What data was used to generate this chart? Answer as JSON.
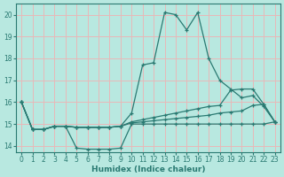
{
  "xlabel": "Humidex (Indice chaleur)",
  "xlim": [
    -0.5,
    23.5
  ],
  "ylim": [
    13.7,
    20.5
  ],
  "yticks": [
    14,
    15,
    16,
    17,
    18,
    19,
    20
  ],
  "xticks": [
    0,
    1,
    2,
    3,
    4,
    5,
    6,
    7,
    8,
    9,
    10,
    11,
    12,
    13,
    14,
    15,
    16,
    17,
    18,
    19,
    20,
    21,
    22,
    23
  ],
  "bg_color": "#b8e8e0",
  "grid_color": "#e8b8b8",
  "line_color": "#2a7a72",
  "series": [
    {
      "x": [
        0,
        1,
        2,
        3,
        4,
        5,
        6,
        7,
        8,
        9,
        10,
        11,
        12,
        13,
        14,
        15,
        16,
        17,
        18,
        19,
        20,
        21,
        22,
        23
      ],
      "y": [
        16.0,
        14.75,
        14.75,
        14.9,
        14.9,
        14.85,
        14.85,
        14.85,
        14.85,
        14.9,
        15.5,
        17.7,
        17.8,
        20.1,
        20.0,
        19.3,
        20.1,
        18.0,
        17.0,
        16.6,
        16.2,
        16.3,
        15.8,
        15.1
      ]
    },
    {
      "x": [
        0,
        1,
        2,
        3,
        4,
        5,
        6,
        7,
        8,
        9,
        10,
        11,
        12,
        13,
        14,
        15,
        16,
        17,
        18,
        19,
        20,
        21,
        22,
        23
      ],
      "y": [
        16.0,
        14.75,
        14.75,
        14.9,
        14.9,
        14.85,
        14.85,
        14.85,
        14.85,
        14.9,
        15.1,
        15.2,
        15.3,
        15.4,
        15.5,
        15.6,
        15.7,
        15.8,
        15.85,
        16.55,
        16.6,
        16.6,
        15.9,
        15.1
      ]
    },
    {
      "x": [
        0,
        1,
        2,
        3,
        4,
        5,
        6,
        7,
        8,
        9,
        10,
        11,
        12,
        13,
        14,
        15,
        16,
        17,
        18,
        19,
        20,
        21,
        22,
        23
      ],
      "y": [
        16.0,
        14.75,
        14.75,
        14.9,
        14.9,
        14.85,
        14.85,
        14.85,
        14.85,
        14.9,
        15.05,
        15.1,
        15.15,
        15.2,
        15.25,
        15.3,
        15.35,
        15.4,
        15.5,
        15.55,
        15.6,
        15.85,
        15.9,
        15.1
      ]
    },
    {
      "x": [
        0,
        1,
        2,
        3,
        4,
        5,
        6,
        7,
        8,
        9,
        10,
        11,
        12,
        13,
        14,
        15,
        16,
        17,
        18,
        19,
        20,
        21,
        22,
        23
      ],
      "y": [
        16.0,
        14.75,
        14.75,
        14.9,
        14.9,
        13.9,
        13.85,
        13.85,
        13.85,
        13.9,
        15.0,
        15.0,
        15.0,
        15.0,
        15.0,
        15.0,
        15.0,
        15.0,
        15.0,
        15.0,
        15.0,
        15.0,
        15.0,
        15.1
      ]
    }
  ]
}
